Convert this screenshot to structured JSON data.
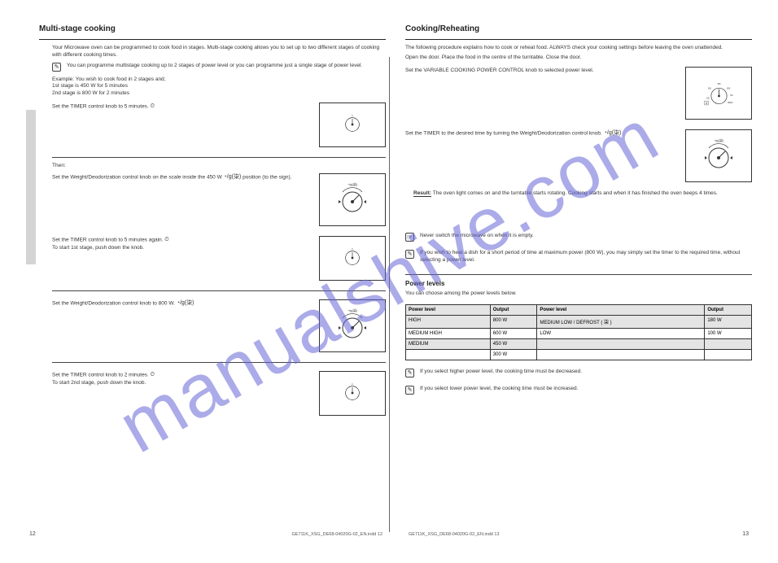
{
  "watermark": "manualshive.com",
  "left": {
    "title": "Multi-stage cooking",
    "intro": "Your Microwave oven can be programmed to cook food in stages. Multi-stage cooking allows you to set up to two different stages of cooking with different cooking times.",
    "note1": "You can programme multistage cooking up to 2 stages of power level or you can programme just a single stage of power level.",
    "example": "Example: You wish to cook food in 2 stages and;",
    "exA": "1st stage is 450 W for 5 minutes",
    "exB": "2nd stage is 800 W for 2 minutes",
    "step1": "Set the TIMER control knob to 5 minutes.",
    "step1_glyph_label": "TIMER",
    "hrNote": "Then:",
    "step2a": "Set the Weight/Deodorization control knob on the scale inside the 450 W",
    "step2b": "position (to the sign).",
    "step3": "Set the TIMER control knob to 5 minutes again.",
    "step3_sub": "To start 1st stage, push down the knob.",
    "step4a": "Set the Weight/Deodorization control knob to 800 W.",
    "step5": "Set the TIMER control knob to 2 minutes.",
    "step5_sub": "To start 2nd stage, push down the knob.",
    "page_num": "12",
    "footer_code": "GE711K_XSG_DE68-04020G-02_EN.indd   12"
  },
  "right": {
    "title": "Cooking/Reheating",
    "intro": "The following procedure explains how to cook or reheat food. ALWAYS check your cooking settings before leaving the oven unattended.",
    "openDoor": "Open the door. Place the food in the centre of the turntable. Close the door.",
    "step1a": "Set the VARIABLE COOKING POWER CONTROL knob to selected power level.",
    "step1b": "Set the TIMER to the desired time by turning the Weight/Deodorization control knob.",
    "result": "Result:",
    "result_text": "The oven light comes on and the turntable starts rotating. Cooking starts and when it has finished the oven beeps 4 times.",
    "caution_icon_text": "Never switch the microwave on when it is empty.",
    "note2": "If you wish to heat a dish for a short period of time at maximum power (800 W), you may simply set the timer to the required time, without selecting a power level.",
    "powerTitle": "Power levels",
    "powerIntro": "You can choose among the power levels below.",
    "table": {
      "columns": [
        "Power level",
        "Output",
        "Power level",
        "Output"
      ],
      "rows": [
        [
          "HIGH",
          "800 W",
          "MEDIUM LOW / DEFROST ( 柒 )",
          "180 W"
        ],
        [
          "MEDIUM HIGH",
          "600 W",
          "LOW",
          "100 W"
        ],
        [
          "MEDIUM",
          "450 W",
          "",
          ""
        ],
        [
          "",
          "300 W",
          "",
          ""
        ]
      ],
      "shaded_body_rows": [
        0,
        2
      ]
    },
    "bottom_note1": "If you select higher power level, the cooking time must be decreased.",
    "bottom_note2": "If you select lower power level, the cooking time must be increased.",
    "page_num": "13",
    "footer_code": "GE711K_XSG_DE68-04020G-02_EN.indd   13",
    "dial_labels": {
      "p100": "100",
      "p300": "300",
      "p450": "450",
      "p600": "600",
      "p720": "720",
      "p800": "800W"
    }
  }
}
